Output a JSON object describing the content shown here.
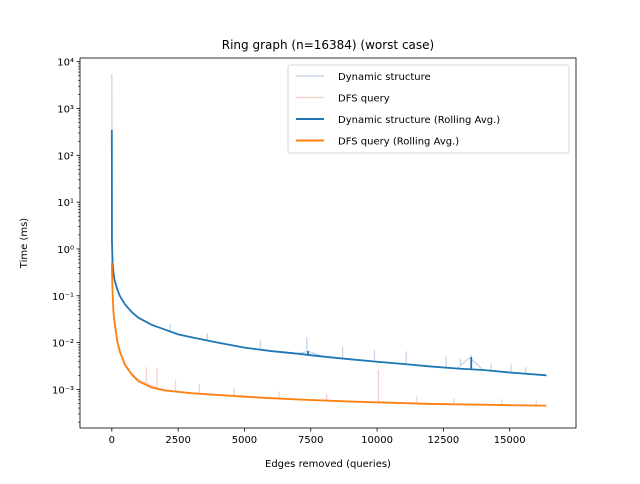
{
  "chart_data": {
    "type": "line",
    "title": "Ring graph (n=16384) (worst case)",
    "xlabel": "Edges removed (queries)",
    "ylabel": "Time (ms)",
    "xlim": [
      -1200,
      17500
    ],
    "ylim": [
      0.00015,
      12000
    ],
    "yscale": "log",
    "grid": false,
    "legend_position": "upper-right",
    "x_ticks": [
      0,
      2500,
      5000,
      7500,
      10000,
      12500,
      15000
    ],
    "x_tick_labels": [
      "0",
      "2500",
      "5000",
      "7500",
      "10000",
      "12500",
      "15000"
    ],
    "y_ticks": [
      0.001,
      0.01,
      0.1,
      1,
      10,
      100,
      1000,
      10000
    ],
    "y_tick_labels": [
      "10⁻³",
      "10⁻²",
      "10⁻¹",
      "10⁰",
      "10¹",
      "10²",
      "10³",
      "10⁴"
    ],
    "series": [
      {
        "name": "Dynamic structure",
        "color": "#b8c4e0",
        "opacity": 0.75,
        "width": 1.3,
        "points": [
          [
            0,
            5500
          ],
          [
            5,
            1.5
          ],
          [
            15,
            0.9
          ],
          [
            30,
            0.5
          ],
          [
            60,
            0.32
          ],
          [
            100,
            0.22
          ],
          [
            200,
            0.14
          ],
          [
            300,
            0.1
          ],
          [
            500,
            0.065
          ],
          [
            750,
            0.045
          ],
          [
            1000,
            0.034
          ],
          [
            1500,
            0.024
          ],
          [
            2000,
            0.019
          ],
          [
            2500,
            0.015
          ],
          [
            3000,
            0.013
          ],
          [
            4000,
            0.01
          ],
          [
            5000,
            0.0078
          ],
          [
            6000,
            0.0066
          ],
          [
            7000,
            0.0058
          ],
          [
            7400,
            0.0065
          ],
          [
            8000,
            0.005
          ],
          [
            9000,
            0.0044
          ],
          [
            10000,
            0.0039
          ],
          [
            11000,
            0.0035
          ],
          [
            12000,
            0.0031
          ],
          [
            13000,
            0.0028
          ],
          [
            13500,
            0.0048
          ],
          [
            14000,
            0.0026
          ],
          [
            15000,
            0.0023
          ],
          [
            16384,
            0.002
          ]
        ],
        "spikes": [
          [
            2200,
            0.025
          ],
          [
            3600,
            0.016
          ],
          [
            5600,
            0.011
          ],
          [
            7350,
            0.013
          ],
          [
            8700,
            0.008
          ],
          [
            9900,
            0.007
          ],
          [
            11100,
            0.0065
          ],
          [
            12600,
            0.005
          ],
          [
            13150,
            0.0045
          ],
          [
            13550,
            0.0055
          ],
          [
            14300,
            0.0036
          ],
          [
            15050,
            0.0034
          ],
          [
            15600,
            0.003
          ]
        ]
      },
      {
        "name": "DFS query",
        "color": "#f1c0c0",
        "opacity": 0.75,
        "width": 1.3,
        "points": [
          [
            0,
            0.6
          ],
          [
            10,
            0.3
          ],
          [
            30,
            0.12
          ],
          [
            60,
            0.05
          ],
          [
            100,
            0.03
          ],
          [
            200,
            0.012
          ],
          [
            300,
            0.007
          ],
          [
            500,
            0.0035
          ],
          [
            750,
            0.0022
          ],
          [
            1000,
            0.0016
          ],
          [
            1500,
            0.0012
          ],
          [
            2000,
            0.00098
          ],
          [
            3000,
            0.00085
          ],
          [
            4000,
            0.00078
          ],
          [
            5000,
            0.00072
          ],
          [
            6000,
            0.00066
          ],
          [
            7000,
            0.00062
          ],
          [
            8000,
            0.00059
          ],
          [
            9000,
            0.00056
          ],
          [
            10000,
            0.00054
          ],
          [
            11000,
            0.00052
          ],
          [
            12000,
            0.0005
          ],
          [
            13000,
            0.00049
          ],
          [
            14000,
            0.00048
          ],
          [
            15000,
            0.00046
          ],
          [
            16384,
            0.00045
          ]
        ],
        "spikes": [
          [
            1300,
            0.003
          ],
          [
            1700,
            0.0028
          ],
          [
            2400,
            0.0016
          ],
          [
            3300,
            0.0013
          ],
          [
            4600,
            0.0011
          ],
          [
            6300,
            0.0009
          ],
          [
            8100,
            0.0008
          ],
          [
            10050,
            0.0027
          ],
          [
            11500,
            0.0007
          ],
          [
            12900,
            0.00065
          ],
          [
            14700,
            0.00062
          ],
          [
            16000,
            0.00058
          ]
        ]
      },
      {
        "name": "Dynamic structure (Rolling Avg.)",
        "color": "#1f77b4",
        "opacity": 1,
        "width": 1.8,
        "points": [
          [
            0,
            350
          ],
          [
            5,
            1.5
          ],
          [
            15,
            0.9
          ],
          [
            30,
            0.5
          ],
          [
            60,
            0.32
          ],
          [
            100,
            0.22
          ],
          [
            200,
            0.14
          ],
          [
            300,
            0.1
          ],
          [
            500,
            0.065
          ],
          [
            750,
            0.045
          ],
          [
            1000,
            0.034
          ],
          [
            1500,
            0.024
          ],
          [
            2000,
            0.019
          ],
          [
            2500,
            0.015
          ],
          [
            3000,
            0.013
          ],
          [
            4000,
            0.01
          ],
          [
            5000,
            0.0078
          ],
          [
            6000,
            0.0066
          ],
          [
            7000,
            0.0058
          ],
          [
            8000,
            0.005
          ],
          [
            9000,
            0.0044
          ],
          [
            10000,
            0.0039
          ],
          [
            11000,
            0.0035
          ],
          [
            12000,
            0.0031
          ],
          [
            13000,
            0.0028
          ],
          [
            14000,
            0.0026
          ],
          [
            15000,
            0.0023
          ],
          [
            16384,
            0.002
          ]
        ],
        "spikes": [
          [
            7400,
            0.0066
          ],
          [
            13550,
            0.0049
          ]
        ]
      },
      {
        "name": "DFS query (Rolling Avg.)",
        "color": "#ff7f0e",
        "opacity": 1,
        "width": 1.8,
        "points": [
          [
            0,
            0.5
          ],
          [
            10,
            0.28
          ],
          [
            30,
            0.11
          ],
          [
            60,
            0.045
          ],
          [
            100,
            0.028
          ],
          [
            200,
            0.011
          ],
          [
            300,
            0.0065
          ],
          [
            500,
            0.0033
          ],
          [
            750,
            0.0021
          ],
          [
            1000,
            0.0015
          ],
          [
            1500,
            0.0011
          ],
          [
            2000,
            0.00095
          ],
          [
            3000,
            0.00083
          ],
          [
            4000,
            0.00076
          ],
          [
            5000,
            0.0007
          ],
          [
            6000,
            0.00065
          ],
          [
            7000,
            0.00061
          ],
          [
            8000,
            0.00058
          ],
          [
            9000,
            0.00055
          ],
          [
            10000,
            0.00053
          ],
          [
            11000,
            0.00051
          ],
          [
            12000,
            0.00049
          ],
          [
            13000,
            0.00048
          ],
          [
            14000,
            0.00047
          ],
          [
            15000,
            0.00046
          ],
          [
            16384,
            0.00045
          ]
        ],
        "spikes": []
      }
    ]
  }
}
